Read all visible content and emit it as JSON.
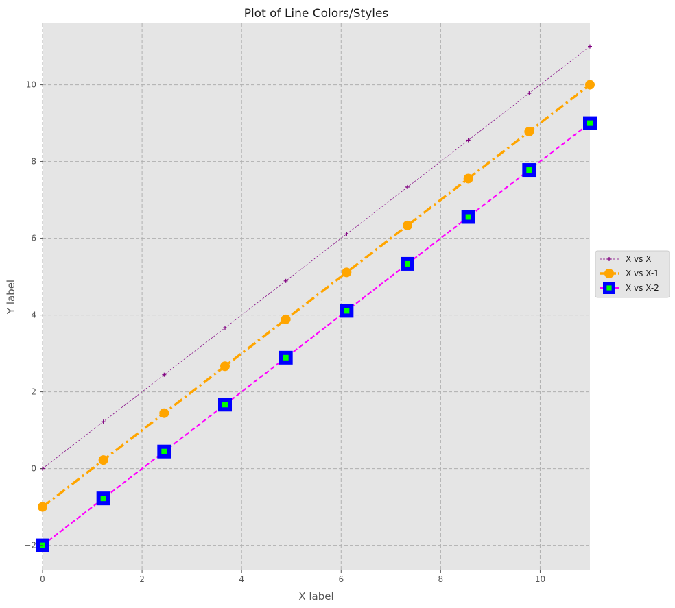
{
  "chart_data": {
    "type": "line",
    "title": "Plot of Line Colors/Styles",
    "xlabel": "X label",
    "ylabel": "Y label",
    "xlim": [
      0,
      11
    ],
    "ylim": [
      -2.65,
      11.6
    ],
    "xticks": [
      0,
      2,
      4,
      6,
      8,
      10
    ],
    "yticks": [
      -2,
      0,
      2,
      4,
      6,
      8,
      10
    ],
    "xtick_labels": [
      "0",
      "2",
      "4",
      "6",
      "8",
      "10"
    ],
    "ytick_labels": [
      "−2",
      "0",
      "2",
      "4",
      "6",
      "8",
      "10"
    ],
    "grid": true,
    "legend_position": "center-right",
    "x": [
      0,
      1.2222,
      2.4444,
      3.6667,
      4.8889,
      6.1111,
      7.3333,
      8.5556,
      9.7778,
      11
    ],
    "series": [
      {
        "name": "X vs X",
        "values": [
          0,
          1.2222,
          2.4444,
          3.6667,
          4.8889,
          6.1111,
          7.3333,
          8.5556,
          9.7778,
          11
        ],
        "color": "#800080",
        "line_style": "dashed",
        "marker": "plus",
        "marker_color": "#800080"
      },
      {
        "name": "X vs X-1",
        "values": [
          -1,
          0.2222,
          1.4444,
          2.6667,
          3.8889,
          5.1111,
          6.3333,
          7.5556,
          8.7778,
          10
        ],
        "color": "#ffa500",
        "line_style": "dashdot",
        "marker": "circle",
        "marker_color": "#ffa500"
      },
      {
        "name": "X vs X-2",
        "values": [
          -2,
          -0.7778,
          0.4444,
          1.6667,
          2.8889,
          4.1111,
          5.3333,
          6.5556,
          7.7778,
          9
        ],
        "color": "#ff00ff",
        "line_style": "dashed",
        "marker": "square",
        "marker_color": "#00ff00",
        "marker_edge_color": "#0000ff"
      }
    ],
    "colors": {
      "plot_background": "#e5e5e5",
      "grid": "#b0b0b0"
    }
  }
}
